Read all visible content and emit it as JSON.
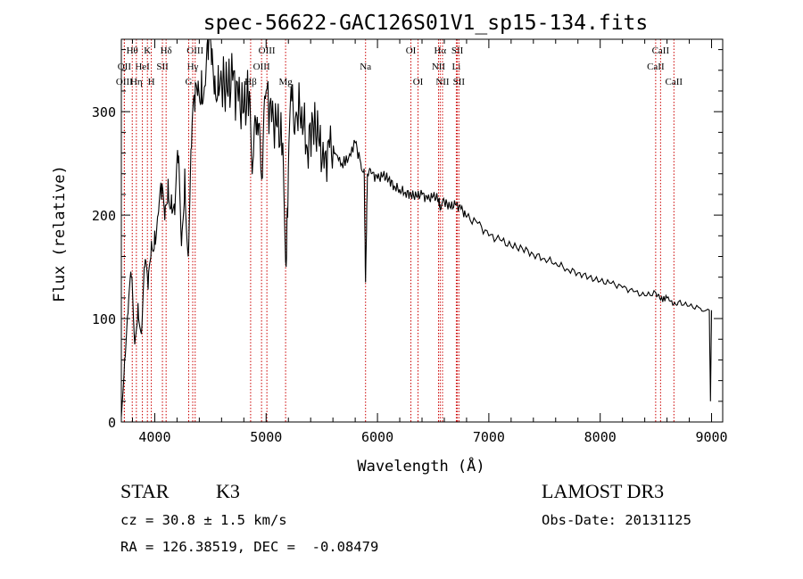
{
  "chart_data": {
    "type": "line",
    "title": "spec-56622-GAC126S01V1_sp15-134.fits",
    "xlabel": "Wavelength (Å)",
    "ylabel": "Flux (relative)",
    "xlim": [
      3700,
      9100
    ],
    "ylim": [
      0,
      370
    ],
    "x_ticks": [
      4000,
      5000,
      6000,
      7000,
      8000,
      9000
    ],
    "y_ticks": [
      0,
      100,
      200,
      300
    ],
    "x_tick_labels": [
      "4000",
      "5000",
      "6000",
      "7000",
      "8000",
      "9000"
    ],
    "y_tick_labels": [
      "0",
      "100",
      "200",
      "300"
    ],
    "grid": false,
    "series": [
      {
        "name": "flux",
        "x": [
          3700,
          3730,
          3760,
          3790,
          3820,
          3850,
          3880,
          3910,
          3940,
          3970,
          4000,
          4030,
          4060,
          4090,
          4120,
          4150,
          4180,
          4210,
          4240,
          4270,
          4300,
          4330,
          4360,
          4390,
          4420,
          4450,
          4480,
          4510,
          4540,
          4570,
          4600,
          4650,
          4700,
          4750,
          4800,
          4850,
          4880,
          4920,
          4960,
          5000,
          5050,
          5100,
          5150,
          5180,
          5200,
          5230,
          5270,
          5320,
          5370,
          5420,
          5470,
          5520,
          5570,
          5620,
          5680,
          5740,
          5800,
          5850,
          5880,
          5893,
          5910,
          5950,
          6000,
          6050,
          6100,
          6150,
          6200,
          6250,
          6300,
          6350,
          6400,
          6450,
          6500,
          6550,
          6563,
          6600,
          6650,
          6700,
          6750,
          6800,
          6900,
          7000,
          7100,
          7200,
          7300,
          7400,
          7500,
          7600,
          7700,
          7800,
          7900,
          8000,
          8100,
          8200,
          8300,
          8400,
          8500,
          8542,
          8600,
          8662,
          8700,
          8800,
          8900,
          8980,
          8990,
          9000
        ],
        "values": [
          5,
          60,
          105,
          140,
          75,
          115,
          85,
          150,
          128,
          175,
          185,
          200,
          215,
          195,
          235,
          220,
          200,
          250,
          170,
          245,
          160,
          265,
          300,
          330,
          340,
          325,
          350,
          345,
          335,
          345,
          330,
          320,
          330,
          310,
          300,
          320,
          250,
          295,
          235,
          320,
          290,
          285,
          270,
          150,
          245,
          310,
          300,
          305,
          265,
          290,
          275,
          245,
          265,
          260,
          250,
          255,
          270,
          250,
          245,
          135,
          240,
          240,
          235,
          238,
          235,
          228,
          225,
          222,
          220,
          218,
          220,
          215,
          218,
          216,
          205,
          213,
          208,
          210,
          206,
          198,
          192,
          180,
          176,
          170,
          168,
          162,
          158,
          154,
          148,
          144,
          140,
          136,
          134,
          130,
          126,
          122,
          125,
          118,
          120,
          114,
          116,
          112,
          110,
          108,
          20,
          108
        ]
      }
    ],
    "line_colors": {
      "spectrum": "#000000",
      "lines": "#cc0000",
      "axes": "#000000"
    },
    "spectral_lines": [
      {
        "label": "Hθ",
        "wave": 3798,
        "row": 0
      },
      {
        "label": "OII",
        "wave": 3727,
        "row": 1
      },
      {
        "label": "OIII",
        "wave": 3727,
        "row": 2
      },
      {
        "label": "HeI",
        "wave": 3889,
        "row": 1
      },
      {
        "label": "Hη",
        "wave": 3835,
        "row": 2
      },
      {
        "label": "K",
        "wave": 3934,
        "row": 0
      },
      {
        "label": "H",
        "wave": 3969,
        "row": 2
      },
      {
        "label": "SII",
        "wave": 4069,
        "row": 1
      },
      {
        "label": "Hδ",
        "wave": 4102,
        "row": 0
      },
      {
        "label": "OIII",
        "wave": 4363,
        "row": 0
      },
      {
        "label": "Hγ",
        "wave": 4341,
        "row": 1
      },
      {
        "label": "G",
        "wave": 4305,
        "row": 2
      },
      {
        "label": "OIII",
        "wave": 5007,
        "row": 0
      },
      {
        "label": "OIII",
        "wave": 4959,
        "row": 1
      },
      {
        "label": "Hβ",
        "wave": 4861,
        "row": 2
      },
      {
        "label": "Mg",
        "wave": 5175,
        "row": 2
      },
      {
        "label": "Na",
        "wave": 5893,
        "row": 1
      },
      {
        "label": "OI",
        "wave": 6300,
        "row": 0
      },
      {
        "label": "OI",
        "wave": 6364,
        "row": 2
      },
      {
        "label": "Hα",
        "wave": 6563,
        "row": 0
      },
      {
        "label": "NII",
        "wave": 6548,
        "row": 1
      },
      {
        "label": "NII",
        "wave": 6584,
        "row": 2
      },
      {
        "label": "SII",
        "wave": 6717,
        "row": 0
      },
      {
        "label": "Li",
        "wave": 6708,
        "row": 1
      },
      {
        "label": "SII",
        "wave": 6731,
        "row": 2
      },
      {
        "label": "CaII",
        "wave": 8542,
        "row": 0
      },
      {
        "label": "CaII",
        "wave": 8498,
        "row": 1
      },
      {
        "label": "CaII",
        "wave": 8662,
        "row": 2
      }
    ]
  },
  "info": {
    "object_class": "STAR",
    "subclass": "K3",
    "survey": "LAMOST DR3",
    "redshift": "cz = 30.8 ± 1.5 km/s",
    "obs_date": "Obs-Date: 20131125",
    "coords": "RA = 126.38519, DEC =  -0.08479"
  }
}
